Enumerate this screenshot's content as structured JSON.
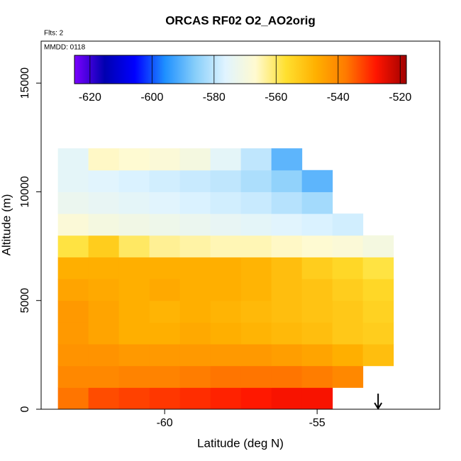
{
  "chart_data": {
    "type": "heatmap",
    "title": "ORCAS RF02 O2_AO2orig",
    "annotations": [
      "Flts: 2",
      "MMDD: 0118"
    ],
    "xlabel": "Latitude (deg N)",
    "ylabel": "Altitude (m)",
    "xlim": [
      -64.05,
      -50.98
    ],
    "ylim": [
      0,
      16930
    ],
    "xticks": [
      -60,
      -55
    ],
    "yticks": [
      0,
      5000,
      10000,
      15000
    ],
    "x_bins": [
      -63.5,
      -62.5,
      -61.5,
      -60.5,
      -59.5,
      -58.5,
      -57.5,
      -56.5,
      -55.5,
      -54.5,
      -53.5,
      -52.5
    ],
    "y_bins": [
      0,
      1000,
      2000,
      3000,
      4000,
      5000,
      6000,
      7000,
      8000,
      9000,
      10000,
      11000,
      12000
    ],
    "values": [
      [
        -537,
        -533,
        -532,
        -531,
        -530,
        -529,
        -528,
        -527,
        -527,
        null,
        null
      ],
      [
        -540,
        -540,
        -539,
        -539,
        -538,
        -537,
        -537,
        -537,
        -538,
        -540,
        null
      ],
      [
        -542,
        -542,
        -543,
        -543,
        -543,
        -543,
        -543,
        -544,
        -545,
        -547,
        -550
      ],
      [
        -543,
        -545,
        -547,
        -547,
        -546,
        -547,
        -548,
        -549,
        -550,
        -552,
        -553
      ],
      [
        -543,
        -545,
        -547,
        -548,
        -547,
        -548,
        -549,
        -550,
        -551,
        -552,
        -554
      ],
      [
        -545,
        -546,
        -547,
        -546,
        -547,
        -547,
        -548,
        -550,
        -551,
        -553,
        -555
      ],
      [
        -547,
        -547,
        -547,
        -547,
        -547,
        -547,
        -548,
        -550,
        -553,
        -555,
        -558
      ],
      [
        -558,
        -553,
        -560,
        -563,
        -564,
        -565,
        -565,
        -566,
        -567,
        -568,
        -570
      ],
      [
        -568,
        -570,
        -571,
        -572,
        -573,
        -574,
        -575,
        -576,
        -577,
        -578,
        null
      ],
      [
        -573,
        -574,
        -575,
        -576,
        -577,
        -578,
        -579,
        -581,
        -583,
        null,
        null
      ],
      [
        -575,
        -576,
        -577,
        -578,
        -579,
        -580,
        -582,
        -585,
        -590,
        null,
        null
      ],
      [
        -575,
        -566,
        -567,
        -568,
        -570,
        -575,
        -580,
        -590,
        null,
        null,
        null
      ]
    ],
    "clim": [
      -625,
      -518
    ],
    "cticks": [
      -620,
      -600,
      -580,
      -560,
      -540,
      -520
    ],
    "colorscale": [
      "#7b00ff",
      "#0000b0",
      "#0000ff",
      "#1e90ff",
      "#87cefa",
      "#e0f4ff",
      "#fffad0",
      "#ffe030",
      "#ffb000",
      "#ff7a00",
      "#ff1500",
      "#a00000"
    ],
    "marker_x": -53
  }
}
